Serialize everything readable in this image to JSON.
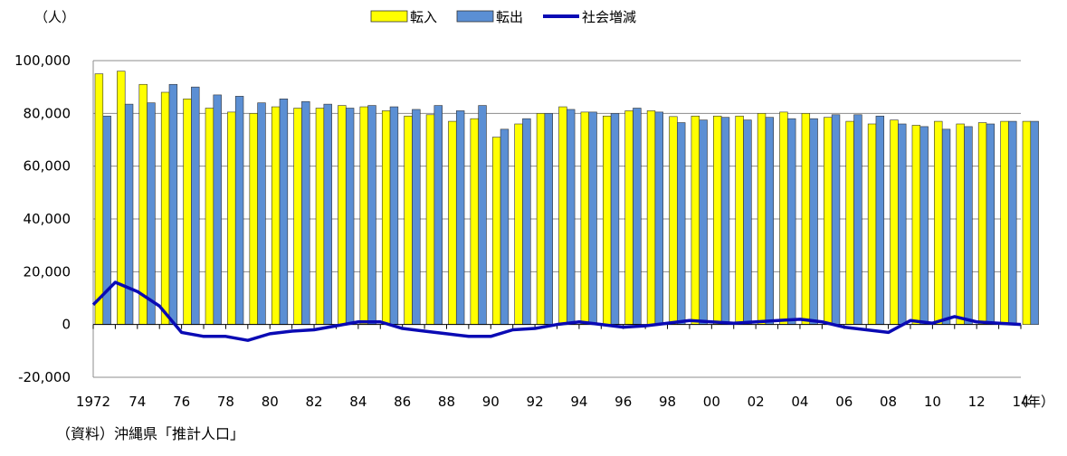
{
  "chart_data": {
    "type": "bar",
    "yunit": "（人）",
    "xunit": "（年）",
    "source": "（資料）沖縄県「推計人口」",
    "ylim": [
      -20000,
      100000
    ],
    "yticks": [
      -20000,
      0,
      20000,
      40000,
      60000,
      80000,
      100000
    ],
    "ytick_labels": [
      "-20,000",
      "0",
      "20,000",
      "40,000",
      "60,000",
      "80,000",
      "100,000"
    ],
    "grid": true,
    "legend_position": "top",
    "x": [
      1972,
      1973,
      1974,
      1975,
      1976,
      1977,
      1978,
      1979,
      1980,
      1981,
      1982,
      1983,
      1984,
      1985,
      1986,
      1987,
      1988,
      1989,
      1990,
      1991,
      1992,
      1993,
      1994,
      1995,
      1996,
      1997,
      1998,
      1999,
      2000,
      2001,
      2002,
      2003,
      2004,
      2005,
      2006,
      2007,
      2008,
      2009,
      2010,
      2011,
      2012,
      2013,
      2014
    ],
    "xtick_labels": [
      "1972",
      "74",
      "76",
      "78",
      "80",
      "82",
      "84",
      "86",
      "88",
      "90",
      "92",
      "94",
      "96",
      "98",
      "00",
      "02",
      "04",
      "06",
      "08",
      "10",
      "12",
      "14"
    ],
    "series": [
      {
        "name": "転入",
        "kind": "bar",
        "color": "#ffff00",
        "values": [
          95000,
          96000,
          91000,
          88000,
          85500,
          82000,
          80500,
          80000,
          82500,
          82000,
          82000,
          83000,
          82500,
          81000,
          79000,
          79500,
          77000,
          78000,
          71000,
          76000,
          80000,
          82500,
          80500,
          79000,
          81000,
          81000,
          78800,
          79000,
          79000,
          79000,
          80000,
          80500,
          80000,
          78500,
          77000,
          76000,
          77500,
          75500,
          77000,
          76000,
          76500,
          77000,
          77000
        ]
      },
      {
        "name": "転出",
        "kind": "bar",
        "color": "#5b8fd4",
        "values": [
          79000,
          83500,
          84000,
          91000,
          90000,
          87000,
          86500,
          84000,
          85500,
          84500,
          83500,
          82000,
          83000,
          82500,
          81500,
          83000,
          81000,
          83000,
          74000,
          78000,
          80000,
          81500,
          80500,
          80000,
          82000,
          80500,
          76500,
          77500,
          78500,
          77500,
          78500,
          78000,
          78000,
          79500,
          79500,
          79000,
          76000,
          75000,
          74000,
          75000,
          76000,
          77000,
          77000
        ]
      },
      {
        "name": "社会増減",
        "kind": "line",
        "color": "#0a0ab4",
        "values": [
          7500,
          16000,
          12500,
          7000,
          -3000,
          -4500,
          -4500,
          -6000,
          -3500,
          -2500,
          -2000,
          -500,
          1000,
          1000,
          -1500,
          -2500,
          -3500,
          -4500,
          -4500,
          -2000,
          -1500,
          0,
          1000,
          0,
          -1000,
          -500,
          500,
          1500,
          1000,
          500,
          1000,
          1500,
          2000,
          1000,
          -1000,
          -2000,
          -3000,
          1500,
          500,
          3000,
          1000,
          500,
          0
        ]
      }
    ]
  }
}
